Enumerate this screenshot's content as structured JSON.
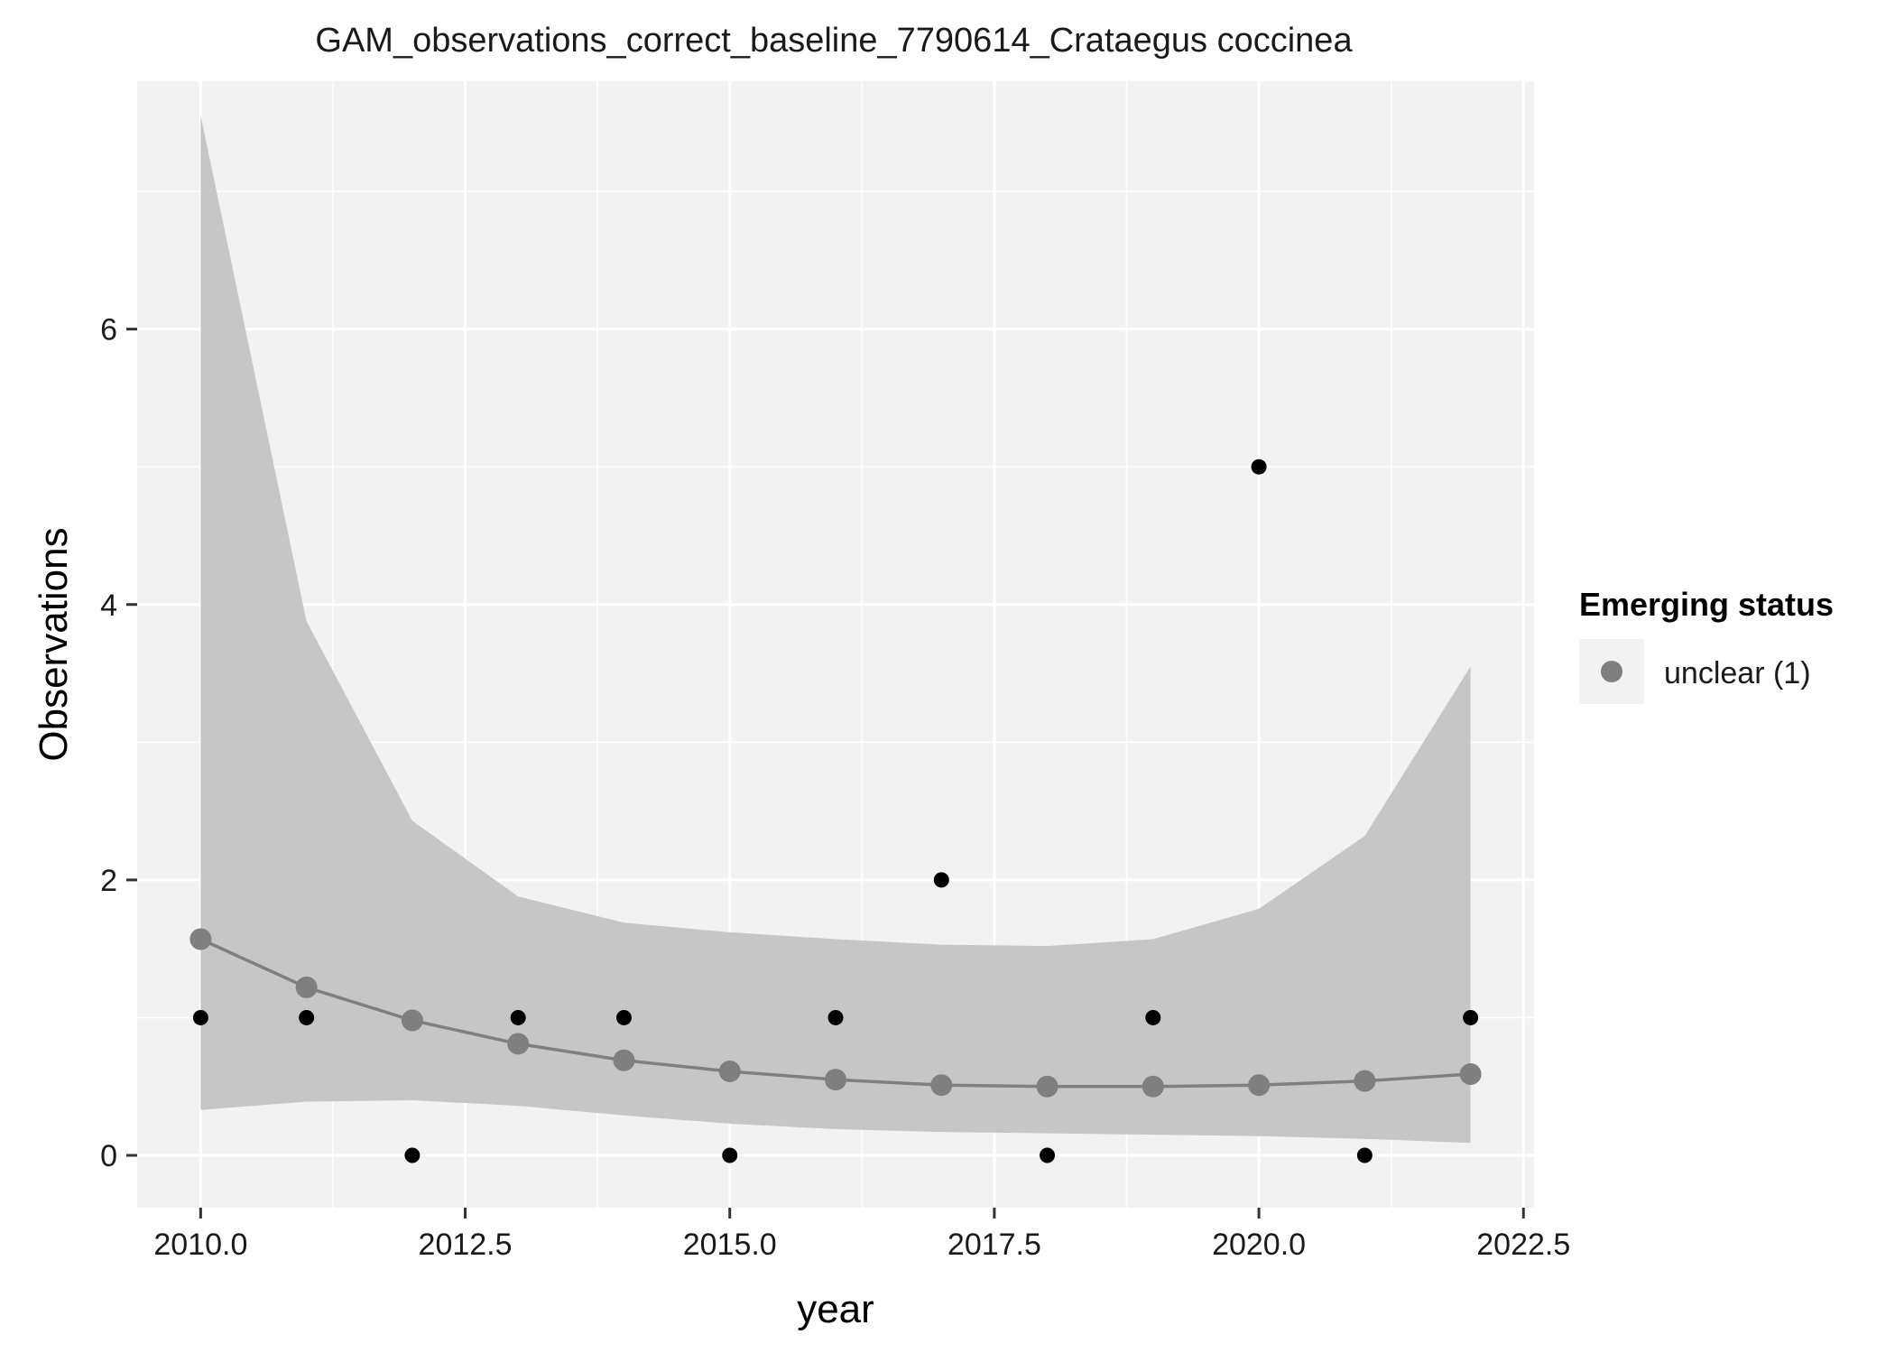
{
  "chart_data": {
    "type": "line",
    "title": "GAM_observations_correct_baseline_7790614_Crataegus coccinea",
    "xlabel": "year",
    "ylabel": "Observations",
    "xlim": [
      2009.4,
      2022.6
    ],
    "ylim": [
      -0.38,
      7.8
    ],
    "x_ticks": [
      2010.0,
      2012.5,
      2015.0,
      2017.5,
      2020.0,
      2022.5
    ],
    "x_tick_labels": [
      "2010.0",
      "2012.5",
      "2015.0",
      "2017.5",
      "2020.0",
      "2022.5"
    ],
    "y_ticks": [
      0,
      2,
      4,
      6
    ],
    "y_tick_labels": [
      "0",
      "2",
      "4",
      "6"
    ],
    "grid": true,
    "legend": {
      "title": "Emerging status",
      "position": "right",
      "entries": [
        {
          "label": "unclear (1)",
          "color": "#7f7f7f"
        }
      ]
    },
    "observed": {
      "x": [
        2010,
        2011,
        2012,
        2013,
        2014,
        2015,
        2016,
        2017,
        2018,
        2019,
        2020,
        2021,
        2022
      ],
      "y": [
        1,
        1,
        0,
        1,
        1,
        0,
        1,
        2,
        0,
        1,
        5,
        0,
        1
      ],
      "color": "#000000"
    },
    "fit": {
      "x": [
        2010,
        2011,
        2012,
        2013,
        2014,
        2015,
        2016,
        2017,
        2018,
        2019,
        2020,
        2021,
        2022
      ],
      "y": [
        1.57,
        1.22,
        0.98,
        0.81,
        0.69,
        0.61,
        0.55,
        0.51,
        0.5,
        0.5,
        0.51,
        0.54,
        0.59
      ],
      "lower": [
        0.33,
        0.39,
        0.4,
        0.36,
        0.29,
        0.23,
        0.19,
        0.17,
        0.16,
        0.15,
        0.14,
        0.12,
        0.09
      ],
      "upper": [
        7.55,
        3.88,
        2.43,
        1.88,
        1.69,
        1.62,
        1.57,
        1.53,
        1.52,
        1.57,
        1.79,
        2.32,
        3.55
      ],
      "color": "#7f7f7f",
      "ribbon_color": "#c6c6c6"
    },
    "panel_background": "#f2f2f2",
    "grid_color": "#ffffff"
  }
}
